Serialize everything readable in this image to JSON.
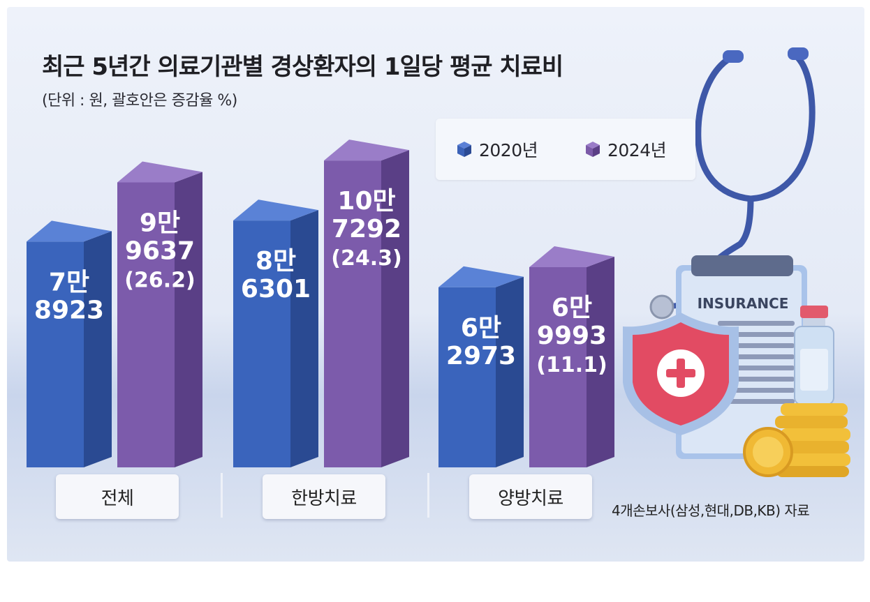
{
  "chart_data": {
    "type": "bar",
    "title": "최근 5년간 의료기관별 경상환자의 1일당 평균 치료비",
    "subtitle": "(단위 : 원, 괄호안은 증감율 %)",
    "categories": [
      "전체",
      "한방치료",
      "양방치료"
    ],
    "series": [
      {
        "name": "2020년",
        "color": "#3b62b8",
        "values": [
          78923,
          86301,
          62973
        ],
        "labels": [
          [
            "7만",
            "8923"
          ],
          [
            "8만",
            "6301"
          ],
          [
            "6만",
            "2973"
          ]
        ]
      },
      {
        "name": "2024년",
        "color": "#7b5aa8",
        "values": [
          99637,
          107292,
          69993
        ],
        "labels": [
          [
            "9만",
            "9637",
            "(26.2)"
          ],
          [
            "10만",
            "7292",
            "(24.3)"
          ],
          [
            "6만",
            "9993",
            "(11.1)"
          ]
        ]
      }
    ],
    "growth_pct": [
      26.2,
      24.3,
      11.1
    ],
    "legend_position": "top-right",
    "grid": false
  },
  "source": "4개손보사(삼성,현대,DB,KB) 자료",
  "illustration": {
    "badge_text": "INSURANCE",
    "icons": [
      "stethoscope-icon",
      "shield-plus-icon",
      "vial-icon",
      "coins-icon",
      "clipboard-icon"
    ]
  }
}
